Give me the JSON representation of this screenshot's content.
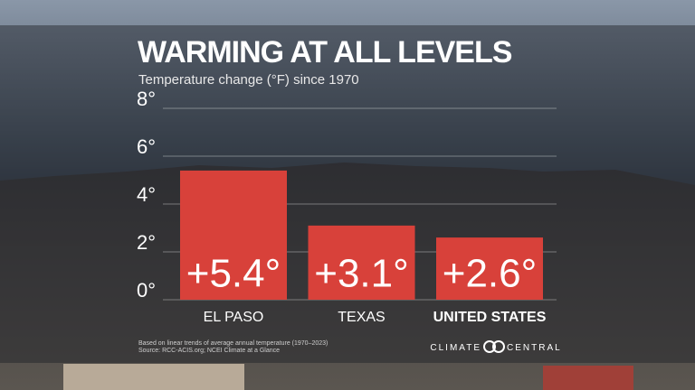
{
  "chart_data": {
    "type": "bar",
    "title": "WARMING AT ALL LEVELS",
    "subtitle": "Temperature change (°F) since 1970",
    "categories": [
      "EL PASO",
      "TEXAS",
      "UNITED STATES"
    ],
    "values": [
      5.4,
      3.1,
      2.6
    ],
    "value_labels": [
      "+5.4°",
      "+3.1°",
      "+2.6°"
    ],
    "color": "#d8413a",
    "ylim": [
      0,
      8
    ],
    "yticks": [
      {
        "value": 0,
        "label": "0°"
      },
      {
        "value": 2,
        "label": "2°"
      },
      {
        "value": 4,
        "label": "4°"
      },
      {
        "value": 6,
        "label": "6°"
      },
      {
        "value": 8,
        "label": "8°"
      }
    ],
    "grid": true,
    "footnotes": [
      "Based on linear trends of average annual temperature (1970–2023)",
      "Source: RCC-ACIS.org; NCEI Climate at a Glance"
    ],
    "logo": "CLIMATE CENTRAL"
  }
}
